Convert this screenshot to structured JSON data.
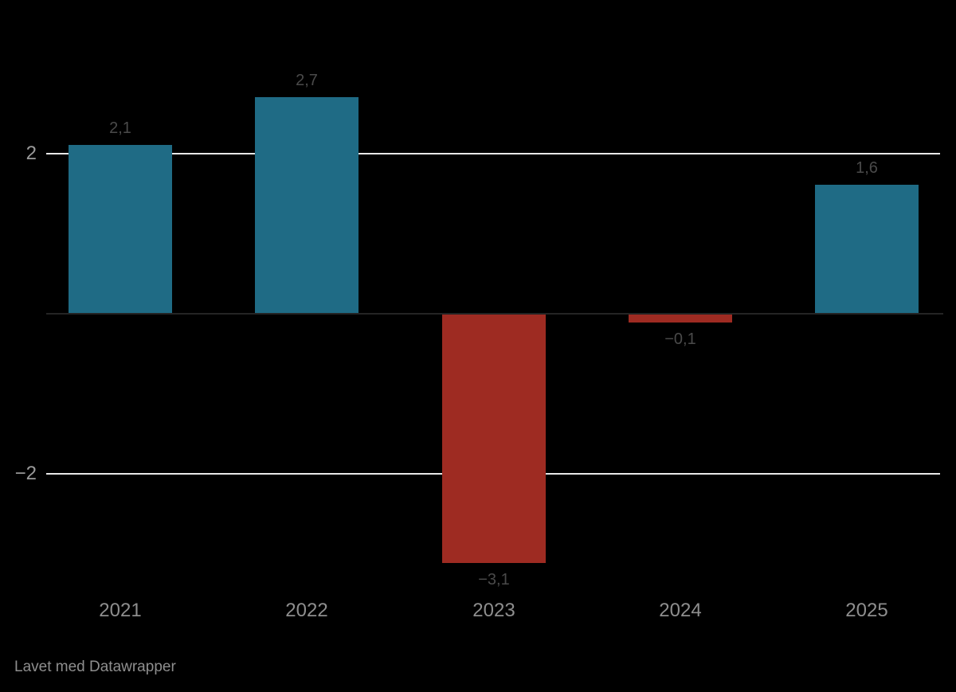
{
  "chart_data": {
    "type": "bar",
    "categories": [
      "2021",
      "2022",
      "2023",
      "2024",
      "2025"
    ],
    "values": [
      2.1,
      2.7,
      -3.1,
      -0.1,
      1.6
    ],
    "value_labels": [
      "2,1",
      "2,7",
      "−3,1",
      "−0,1",
      "1,6"
    ],
    "title": "",
    "xlabel": "",
    "ylabel": "",
    "ylim": [
      -3.9,
      3.9
    ],
    "y_gridlines": [
      2,
      -2
    ],
    "y_gridline_labels": [
      "2",
      "−2"
    ],
    "zero_baseline": true,
    "legend": "none",
    "colors": {
      "positive_bar": "#1f6b85",
      "negative_bar": "#9e2b22",
      "gridline": "#e8e8e8",
      "zero_line": "#242424",
      "value_label": "#4a4a4a",
      "tick_label": "#9a9a9a",
      "category_label": "#8e8e8e",
      "background": "#000000"
    }
  },
  "footer": {
    "attribution": "Lavet med Datawrapper"
  }
}
